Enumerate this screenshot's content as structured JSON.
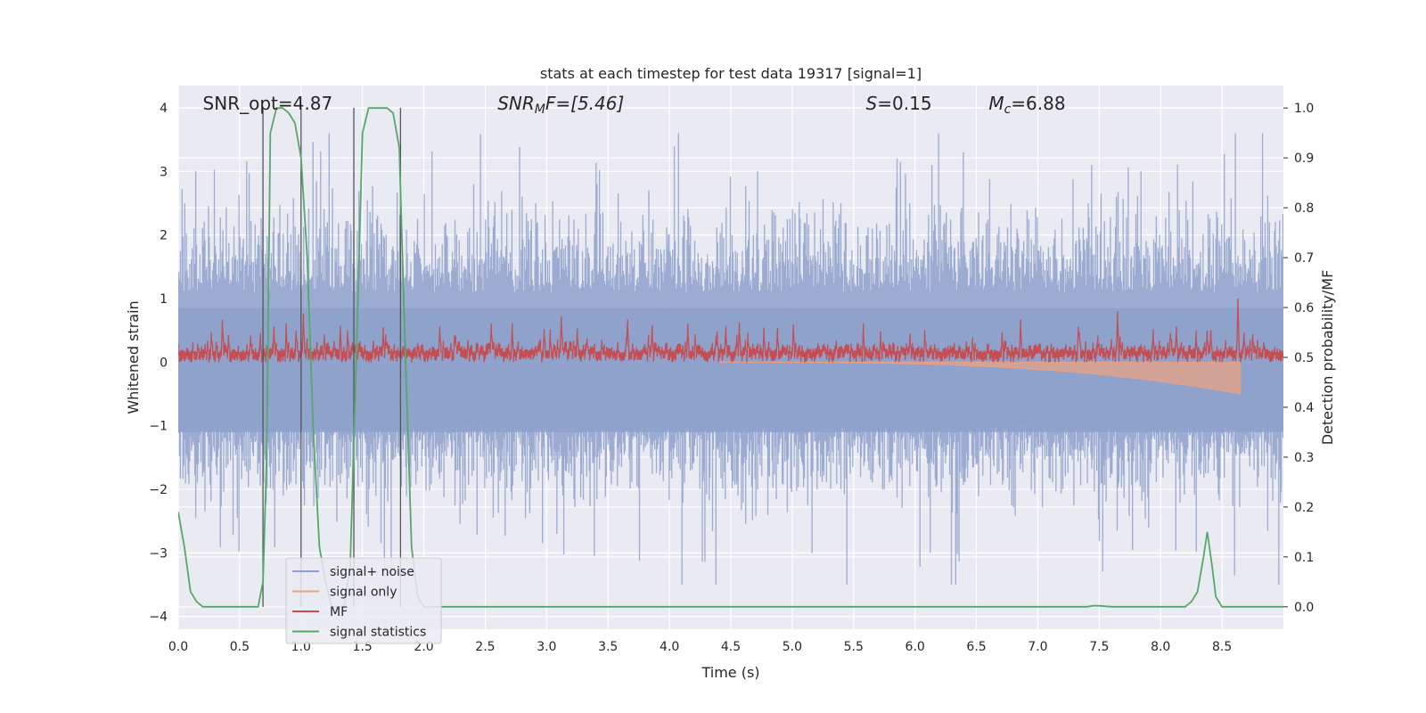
{
  "chart_data": {
    "type": "line",
    "title": "stats at each timestep for test data 19317 [signal=1]",
    "xlabel": "Time (s)",
    "ylabel_left": "Whitened strain",
    "ylabel_right": "Detection probability/MF",
    "xlim": [
      0,
      9
    ],
    "ylim_left": [
      -4.2,
      4.35
    ],
    "ylim_right": [
      -0.045,
      1.045
    ],
    "xticks": [
      "0.0",
      "0.5",
      "1.0",
      "1.5",
      "2.0",
      "2.5",
      "3.0",
      "3.5",
      "4.0",
      "4.5",
      "5.0",
      "5.5",
      "6.0",
      "6.5",
      "7.0",
      "7.5",
      "8.0",
      "8.5"
    ],
    "xtick_values": [
      0.0,
      0.5,
      1.0,
      1.5,
      2.0,
      2.5,
      3.0,
      3.5,
      4.0,
      4.5,
      5.0,
      5.5,
      6.0,
      6.5,
      7.0,
      7.5,
      8.0,
      8.5
    ],
    "yticks_left": [
      "4",
      "3",
      "2",
      "1",
      "0",
      "−1",
      "−2",
      "−3",
      "−4"
    ],
    "ytick_values_left": [
      4,
      3,
      2,
      1,
      0,
      -1,
      -2,
      -3,
      -4
    ],
    "yticks_right": [
      "1.0",
      "0.9",
      "0.8",
      "0.7",
      "0.6",
      "0.5",
      "0.4",
      "0.3",
      "0.2",
      "0.1",
      "0.0"
    ],
    "ytick_values_right": [
      1.0,
      0.9,
      0.8,
      0.7,
      0.6,
      0.5,
      0.4,
      0.3,
      0.2,
      0.1,
      0.0
    ],
    "annotations": [
      {
        "text": "SNR_opt=4.87",
        "x": 0.2
      },
      {
        "text": "SNR",
        "sub": "M",
        "rest": "F=[5.46]",
        "x": 2.6
      },
      {
        "text": "S",
        "rest": "=0.15",
        "x": 5.6
      },
      {
        "text": "M",
        "sub": "c",
        "rest": "=6.88",
        "x": 6.6
      }
    ],
    "legend": {
      "position": "lower-left",
      "entries": [
        {
          "label": "signal+ noise",
          "color": "#8da0cb"
        },
        {
          "label": "signal only",
          "color": "#e9a185"
        },
        {
          "label": "MF",
          "color": "#c44e52"
        },
        {
          "label": "signal statistics",
          "color": "#55a868"
        }
      ]
    },
    "vertical_markers_x": [
      0.69,
      1.0,
      1.43,
      1.81
    ],
    "signal_only_end_x": 8.65,
    "signal_only_min": -0.5,
    "noise_envelope": {
      "typical_max": 2.0,
      "peak_max": 3.6,
      "typical_min": -1.8,
      "peak_min": -3.5
    },
    "mf_level": {
      "base": 0.15,
      "peak": 0.6,
      "spike_x": 7.65,
      "spike2_x": 8.63,
      "spike2_value": 1.0
    },
    "signal_statistics": {
      "x": [
        0.0,
        0.05,
        0.1,
        0.15,
        0.2,
        0.3,
        0.4,
        0.5,
        0.6,
        0.65,
        0.69,
        0.72,
        0.75,
        0.8,
        0.85,
        0.9,
        0.95,
        1.0,
        1.05,
        1.1,
        1.15,
        1.2,
        1.25,
        1.3,
        1.35,
        1.4,
        1.45,
        1.5,
        1.55,
        1.6,
        1.65,
        1.7,
        1.75,
        1.8,
        1.85,
        1.9,
        1.95,
        2.0,
        2.5,
        3.0,
        4.0,
        5.0,
        6.0,
        7.0,
        7.4,
        7.45,
        7.5,
        7.6,
        8.0,
        8.2,
        8.25,
        8.3,
        8.35,
        8.38,
        8.42,
        8.45,
        8.5,
        8.6,
        9.0
      ],
      "y": [
        0.19,
        0.12,
        0.03,
        0.01,
        0.0,
        0.0,
        0.0,
        0.0,
        0.0,
        0.0,
        0.05,
        0.3,
        0.95,
        1.0,
        1.0,
        0.99,
        0.97,
        0.9,
        0.7,
        0.35,
        0.12,
        0.05,
        0.0,
        0.0,
        0.0,
        0.08,
        0.5,
        0.95,
        1.0,
        1.0,
        1.0,
        1.0,
        0.99,
        0.92,
        0.5,
        0.12,
        0.02,
        0.0,
        0.0,
        0.0,
        0.0,
        0.0,
        0.0,
        0.0,
        0.0,
        0.002,
        0.002,
        0.0,
        0.0,
        0.0,
        0.01,
        0.03,
        0.1,
        0.15,
        0.08,
        0.02,
        0.0,
        0.0,
        0.0
      ]
    }
  }
}
